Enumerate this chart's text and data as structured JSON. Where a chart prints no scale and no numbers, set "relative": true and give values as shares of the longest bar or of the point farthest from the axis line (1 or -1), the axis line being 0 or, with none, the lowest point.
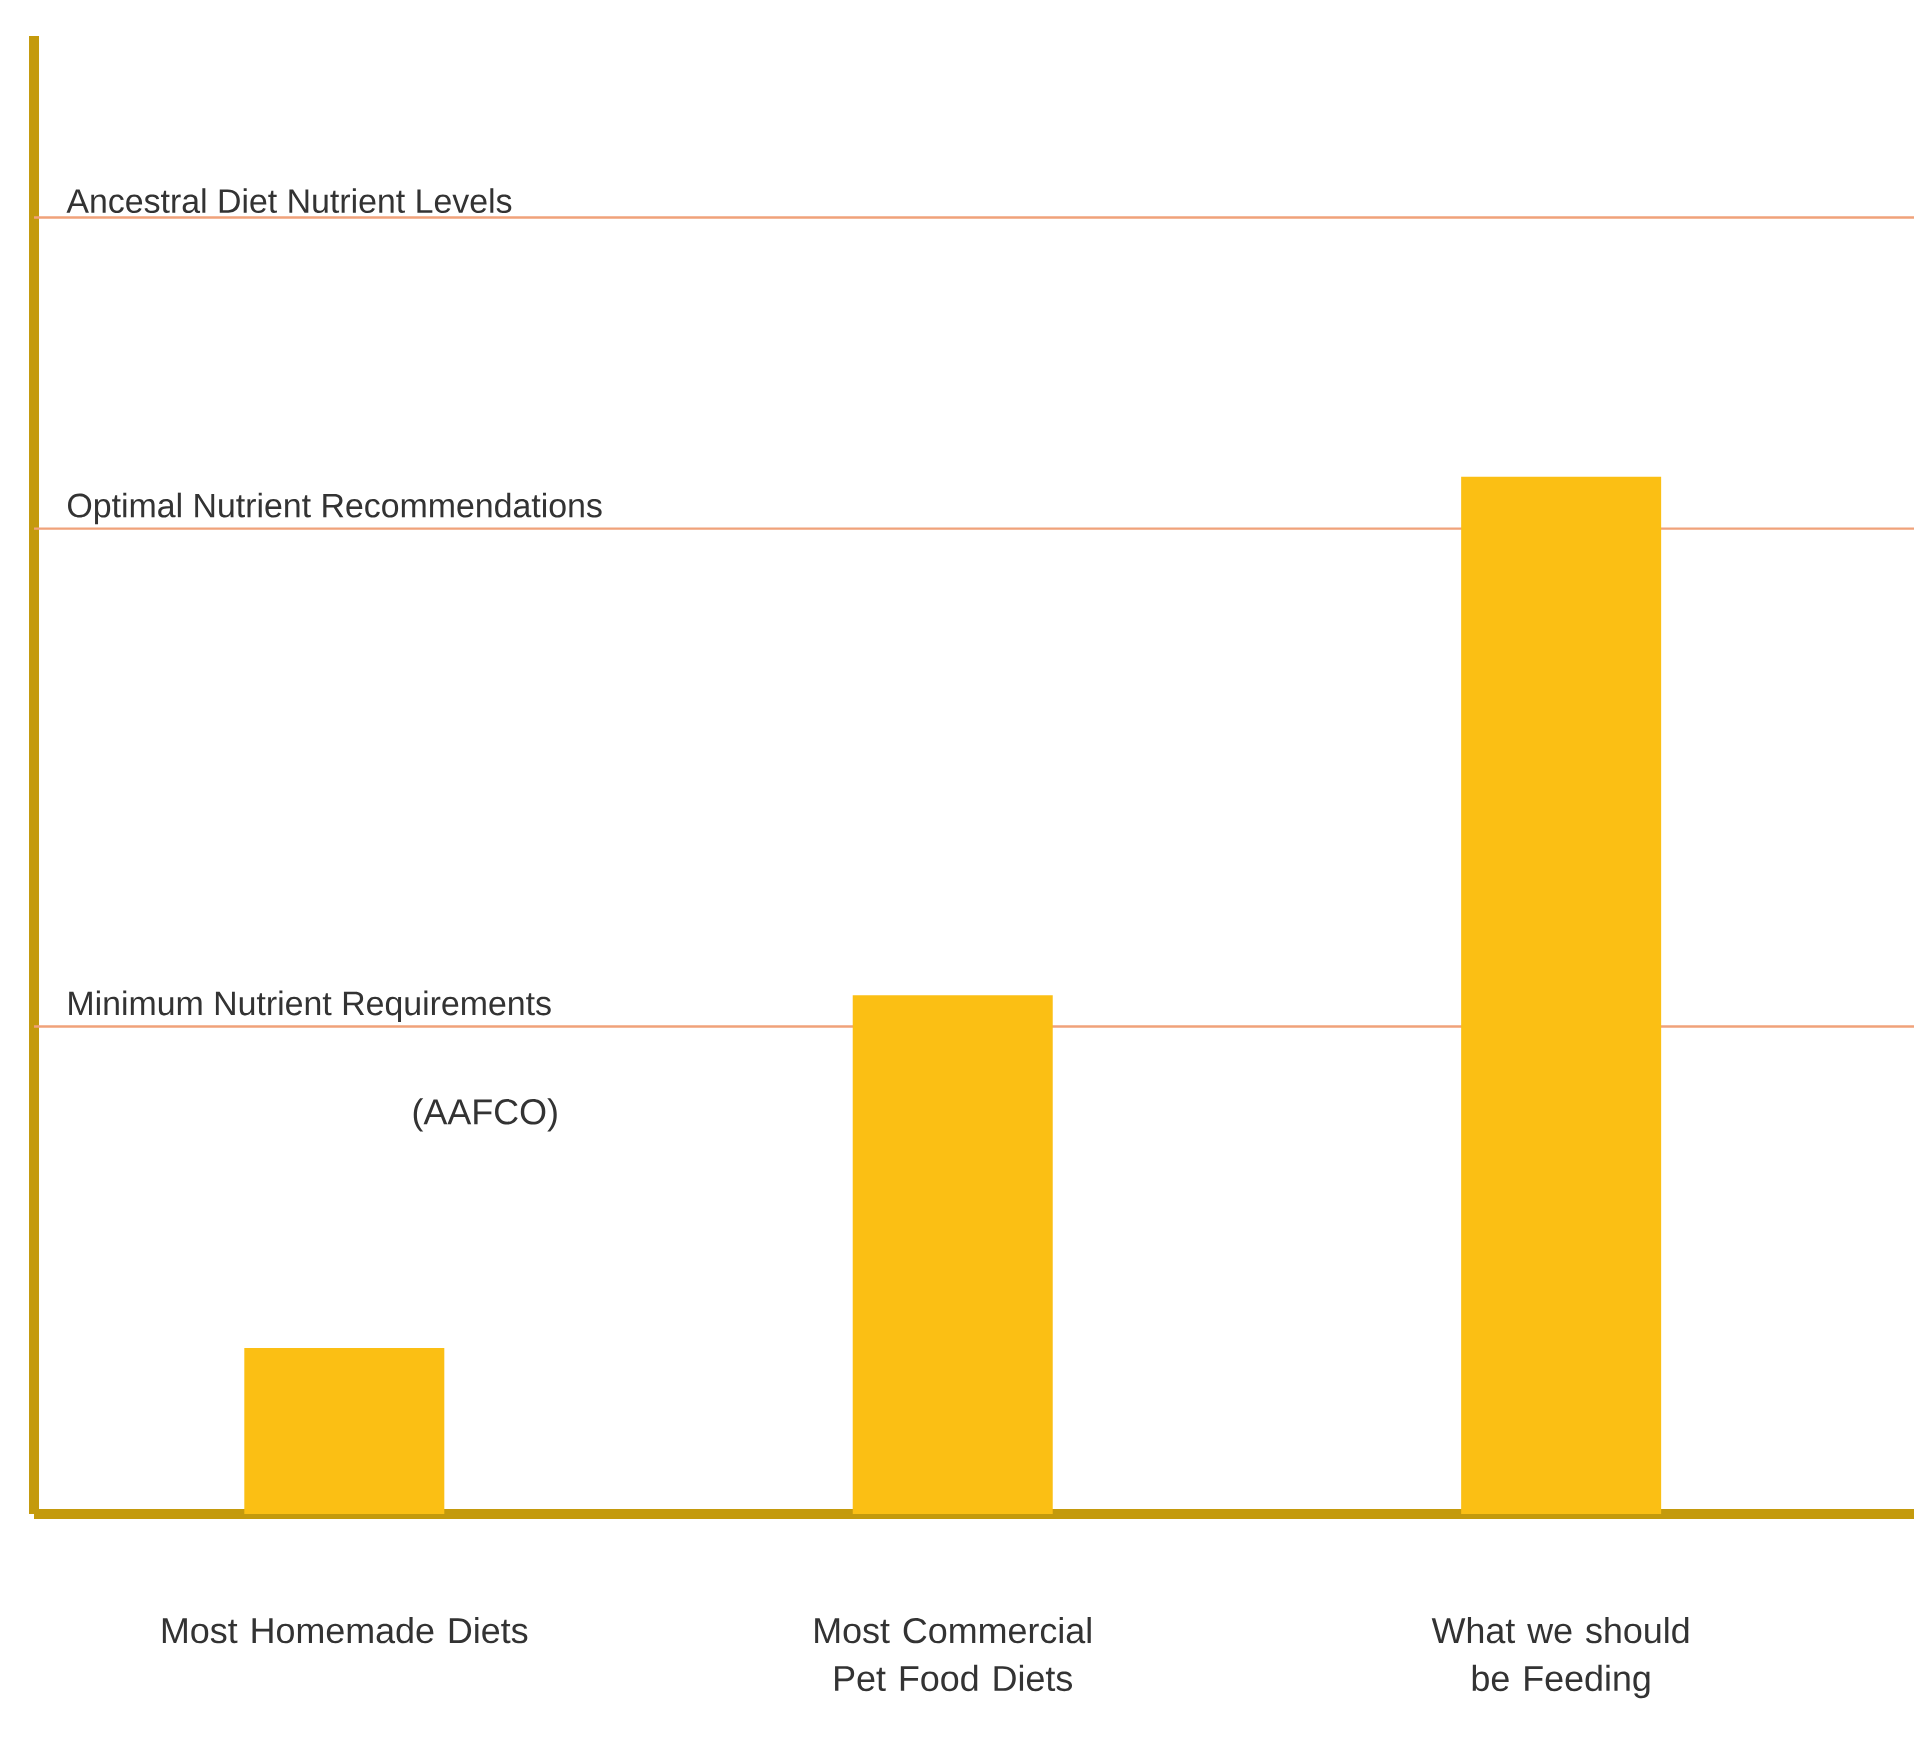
{
  "chart_data": {
    "type": "bar",
    "relative": true,
    "categories": [
      "Most Homemade Diets",
      "Most Commercial Pet Food Diets",
      "What we should be Feeding"
    ],
    "values": [
      0.16,
      0.5,
      1.0
    ],
    "color": "#fbbf14",
    "ref_lines": [
      {
        "axis": "y",
        "value": 1.25,
        "label": "Ancestral Diet Nutrient Levels",
        "color": "#f0a27a"
      },
      {
        "axis": "y",
        "value": 0.95,
        "label": "Optimal Nutrient Recommendations",
        "color": "#f0a27a"
      },
      {
        "axis": "y",
        "value": 0.47,
        "label": "Minimum Nutrient Requirements",
        "color": "#f0a27a"
      }
    ],
    "annotations": [
      "(AAFCO)"
    ]
  }
}
